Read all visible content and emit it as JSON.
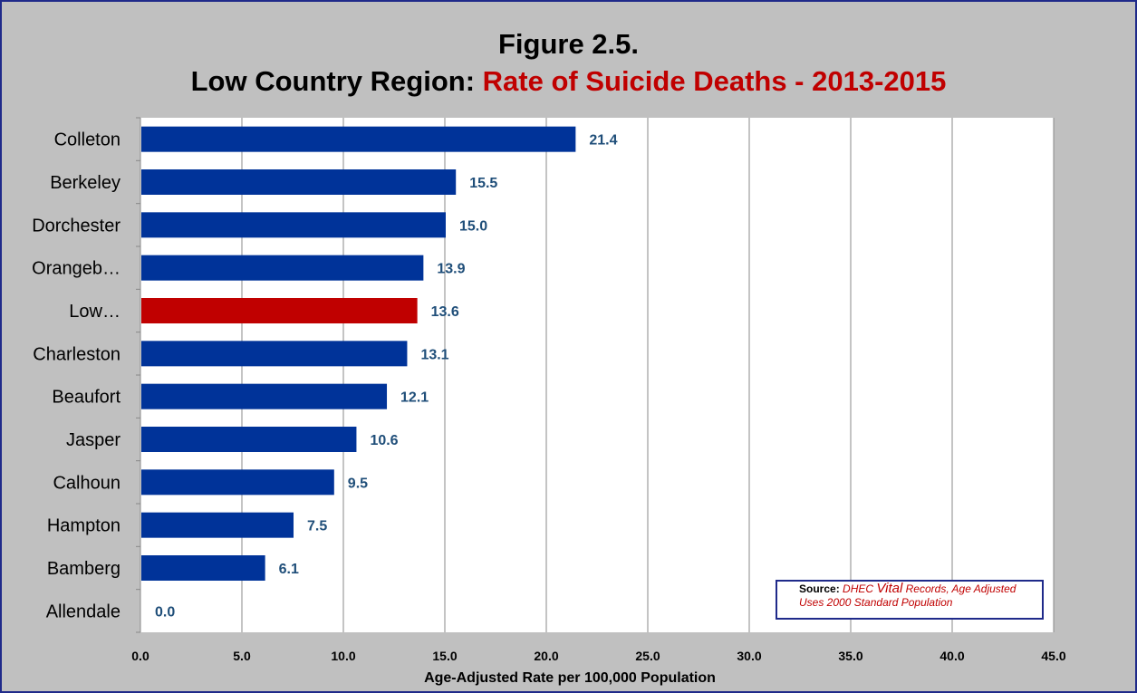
{
  "title": {
    "line1": "Figure 2.5.",
    "line2_black": "Low Country  Region: ",
    "line2_red": "Rate of Suicide Deaths - 2013-2015"
  },
  "source": {
    "label": "Source",
    "sep": ": ",
    "part1": "DHEC ",
    "part2": "Vital",
    "part3": " Records, Age Adjusted Uses 2000 Standard Population"
  },
  "colors": {
    "bar": "#003399",
    "highlight": "#c00000",
    "label": "#1f4e79",
    "grid": "#888888"
  },
  "chart_data": {
    "type": "bar",
    "orientation": "horizontal",
    "categories": [
      "Colleton",
      "Berkeley",
      "Dorchester",
      "Orangeb…",
      "Low…",
      "Charleston",
      "Beaufort",
      "Jasper",
      "Calhoun",
      "Hampton",
      "Bamberg",
      "Allendale"
    ],
    "values": [
      21.4,
      15.5,
      15.0,
      13.9,
      13.6,
      13.1,
      12.1,
      10.6,
      9.5,
      7.5,
      6.1,
      0.0
    ],
    "value_labels": [
      "21.4",
      "15.5",
      "15.0",
      "13.9",
      "13.6",
      "13.1",
      "12.1",
      "10.6",
      "9.5",
      "7.5",
      "6.1",
      "0.0"
    ],
    "highlight_index": 4,
    "xlabel": "Age-Adjusted Rate per 100,000 Population",
    "xlim": [
      0,
      45
    ],
    "xticks": [
      "0.0",
      "5.0",
      "10.0",
      "15.0",
      "20.0",
      "25.0",
      "30.0",
      "35.0",
      "40.0",
      "45.0"
    ],
    "grid": true
  }
}
